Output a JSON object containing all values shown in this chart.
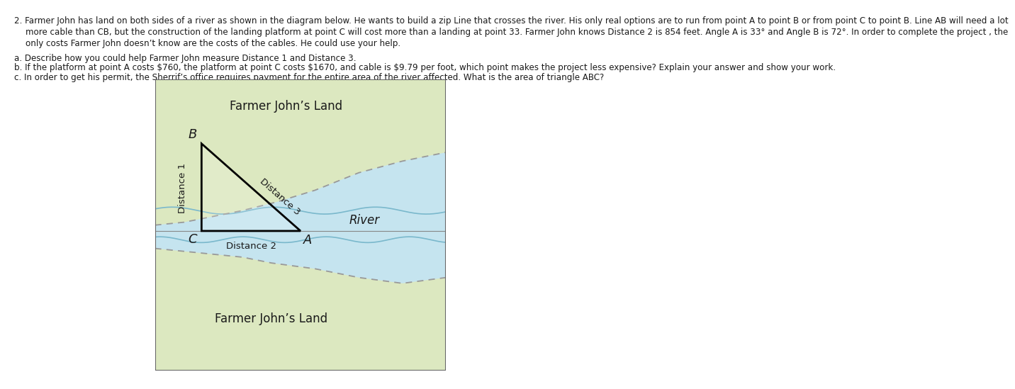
{
  "text_lines": [
    "2. Farmer John has land on both sides of a river as shown in the diagram below. He wants to build a zip Line that crosses the river. His only real options are to run from point A to point B or from point C to point B. Line AB will need a lot",
    "more cable than CB, but the construction of the landing platform at point C will cost more than a landing at point 33. Farmer John knows Distance 2 is 854 feet. Angle A is 33° and Angle B is 72°. In order to complete the project , the",
    "only costs Farmer John doesn’t know are the costs of the cables. He could use your help."
  ],
  "qa": "a. Describe how you could help Farmer John measure Distance 1 and Distance 3.",
  "qb": "b. If the platform at point A costs $760, the platform at point C costs $1670, and cable is $9.79 per foot, which point makes the project less expensive? Explain your answer and show your work.",
  "qc": "c. In order to get his permit, the Sherrif’s office requires payment for the entire area of the river affected. What is the area of triangle ABC?",
  "land_color": "#dce8c0",
  "river_color": "#c5e4ef",
  "triangle_line_color": "#000000",
  "dashed_color": "#999999",
  "river_line_color": "#7ab8cc",
  "border_color": "#666666",
  "text_color": "#1a1a1a",
  "label_B": "B",
  "label_C": "C",
  "label_A": "A",
  "label_dist1": "Distance 1",
  "label_dist2": "Distance 2",
  "label_dist3": "Distance 3",
  "label_river": "River",
  "label_land_top": "Farmer John’s Land",
  "label_land_bottom": "Farmer John’s Land"
}
